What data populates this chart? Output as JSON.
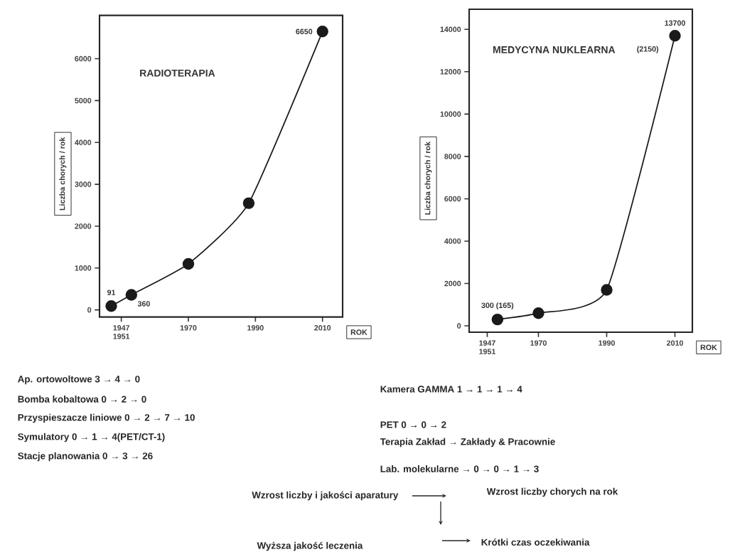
{
  "chart_data": [
    {
      "type": "line",
      "title": "RADIOTERAPIA",
      "xlabel": "ROK",
      "ylabel": "Liczba chorych / rok",
      "x": [
        1947,
        1953,
        1970,
        1988,
        2010
      ],
      "series": [
        {
          "color": "#1a1a1a",
          "values": [
            91,
            360,
            1100,
            2550,
            6650
          ],
          "value_labels": [
            "91",
            "360",
            null,
            null,
            "6650"
          ]
        }
      ],
      "marker": "circle",
      "line_style": "solid",
      "xlim": [
        1943.5,
        2016
      ],
      "ylim": [
        -170,
        7035
      ],
      "xticks": [
        {
          "value": 1950,
          "label": "1947 1951"
        },
        1970,
        1990,
        2010
      ],
      "yticks": [
        0,
        1000,
        2000,
        3000,
        4000,
        5000,
        6000
      ],
      "annotations": [
        "Ap. ortowoltowe 3 → 4 → 0",
        "Bomba kobaltowa 0 → 2 → 0",
        "Przyspieszacze liniowe 0 → 2 → 7 → 10",
        "Symulatory 0 → 1 → 4(PET/CT-1)",
        "Stacje planowania 0 → 3 → 26"
      ]
    },
    {
      "type": "line",
      "title": "MEDYCYNA NUKLEARNA",
      "xlabel": "ROK",
      "ylabel": "Liczba chorych / rok",
      "x": [
        1958,
        1970,
        1990,
        2010
      ],
      "series": [
        {
          "color": "#1a1a1a",
          "values": [
            300,
            600,
            1700,
            13700
          ],
          "value_labels": [
            "300 (165)",
            null,
            null,
            "13700"
          ]
        }
      ],
      "marker": "circle",
      "line_style": "solid",
      "xlim": [
        1949.7,
        2015.1
      ],
      "ylim": [
        -300,
        14950
      ],
      "xticks": [
        {
          "value": 1955,
          "label": "1947 1951"
        },
        1970,
        1990,
        2010
      ],
      "yticks": [
        0,
        2000,
        4000,
        6000,
        8000,
        10000,
        12000,
        14000
      ],
      "annotations": [
        "(2150)",
        "Kamera GAMMA 1 → 1 → 1 → 4",
        "PET 0 → 0 → 2",
        "Terapia Zakład → Zakłady & Pracownie",
        "Lab. molekularne → 0 → 0 → 1 → 3",
        "Wzrost liczby i jakości aparatury",
        "Wzrost liczby chorych na rok",
        "Wyższa jakość leczenia",
        "Krótki czas oczekiwania"
      ]
    }
  ]
}
